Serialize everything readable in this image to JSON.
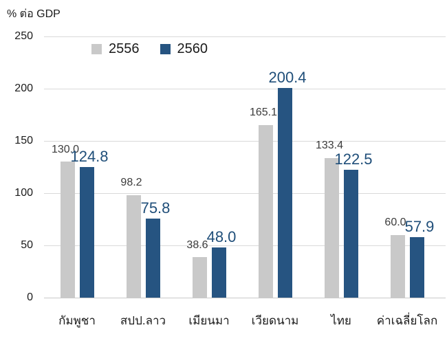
{
  "chart_data": {
    "type": "bar",
    "title": "% ต่อ GDP",
    "xlabel": "",
    "ylabel": "% ต่อ GDP",
    "ylim": [
      0,
      250
    ],
    "yticks": [
      0,
      50,
      100,
      150,
      200,
      250
    ],
    "grid": "horizontal",
    "legend_position": "top",
    "categories": [
      "กัมพูชา",
      "สปป.ลาว",
      "เมียนมา",
      "เวียดนาม",
      "ไทย",
      "ค่าเฉลี่ยโลก"
    ],
    "series": [
      {
        "name": "2556",
        "color": "#c9c9c9",
        "label_color": "#3b3b3b",
        "values": [
          130.0,
          98.2,
          38.6,
          165.1,
          133.4,
          60.0
        ],
        "value_labels": [
          "130.0",
          "98.2",
          "38.6",
          "165.1",
          "133.4",
          "60.0"
        ]
      },
      {
        "name": "2560",
        "color": "#265481",
        "label_color": "#1f4e79",
        "values": [
          124.8,
          75.8,
          48.0,
          200.4,
          122.5,
          57.9
        ],
        "value_labels": [
          "124.8",
          "75.8",
          "48.0",
          "200.4",
          "122.5",
          "57.9"
        ]
      }
    ]
  },
  "colors": {
    "gridline": "#d9d9d9",
    "axis_text": "#1a1a1a",
    "background": "#ffffff"
  }
}
